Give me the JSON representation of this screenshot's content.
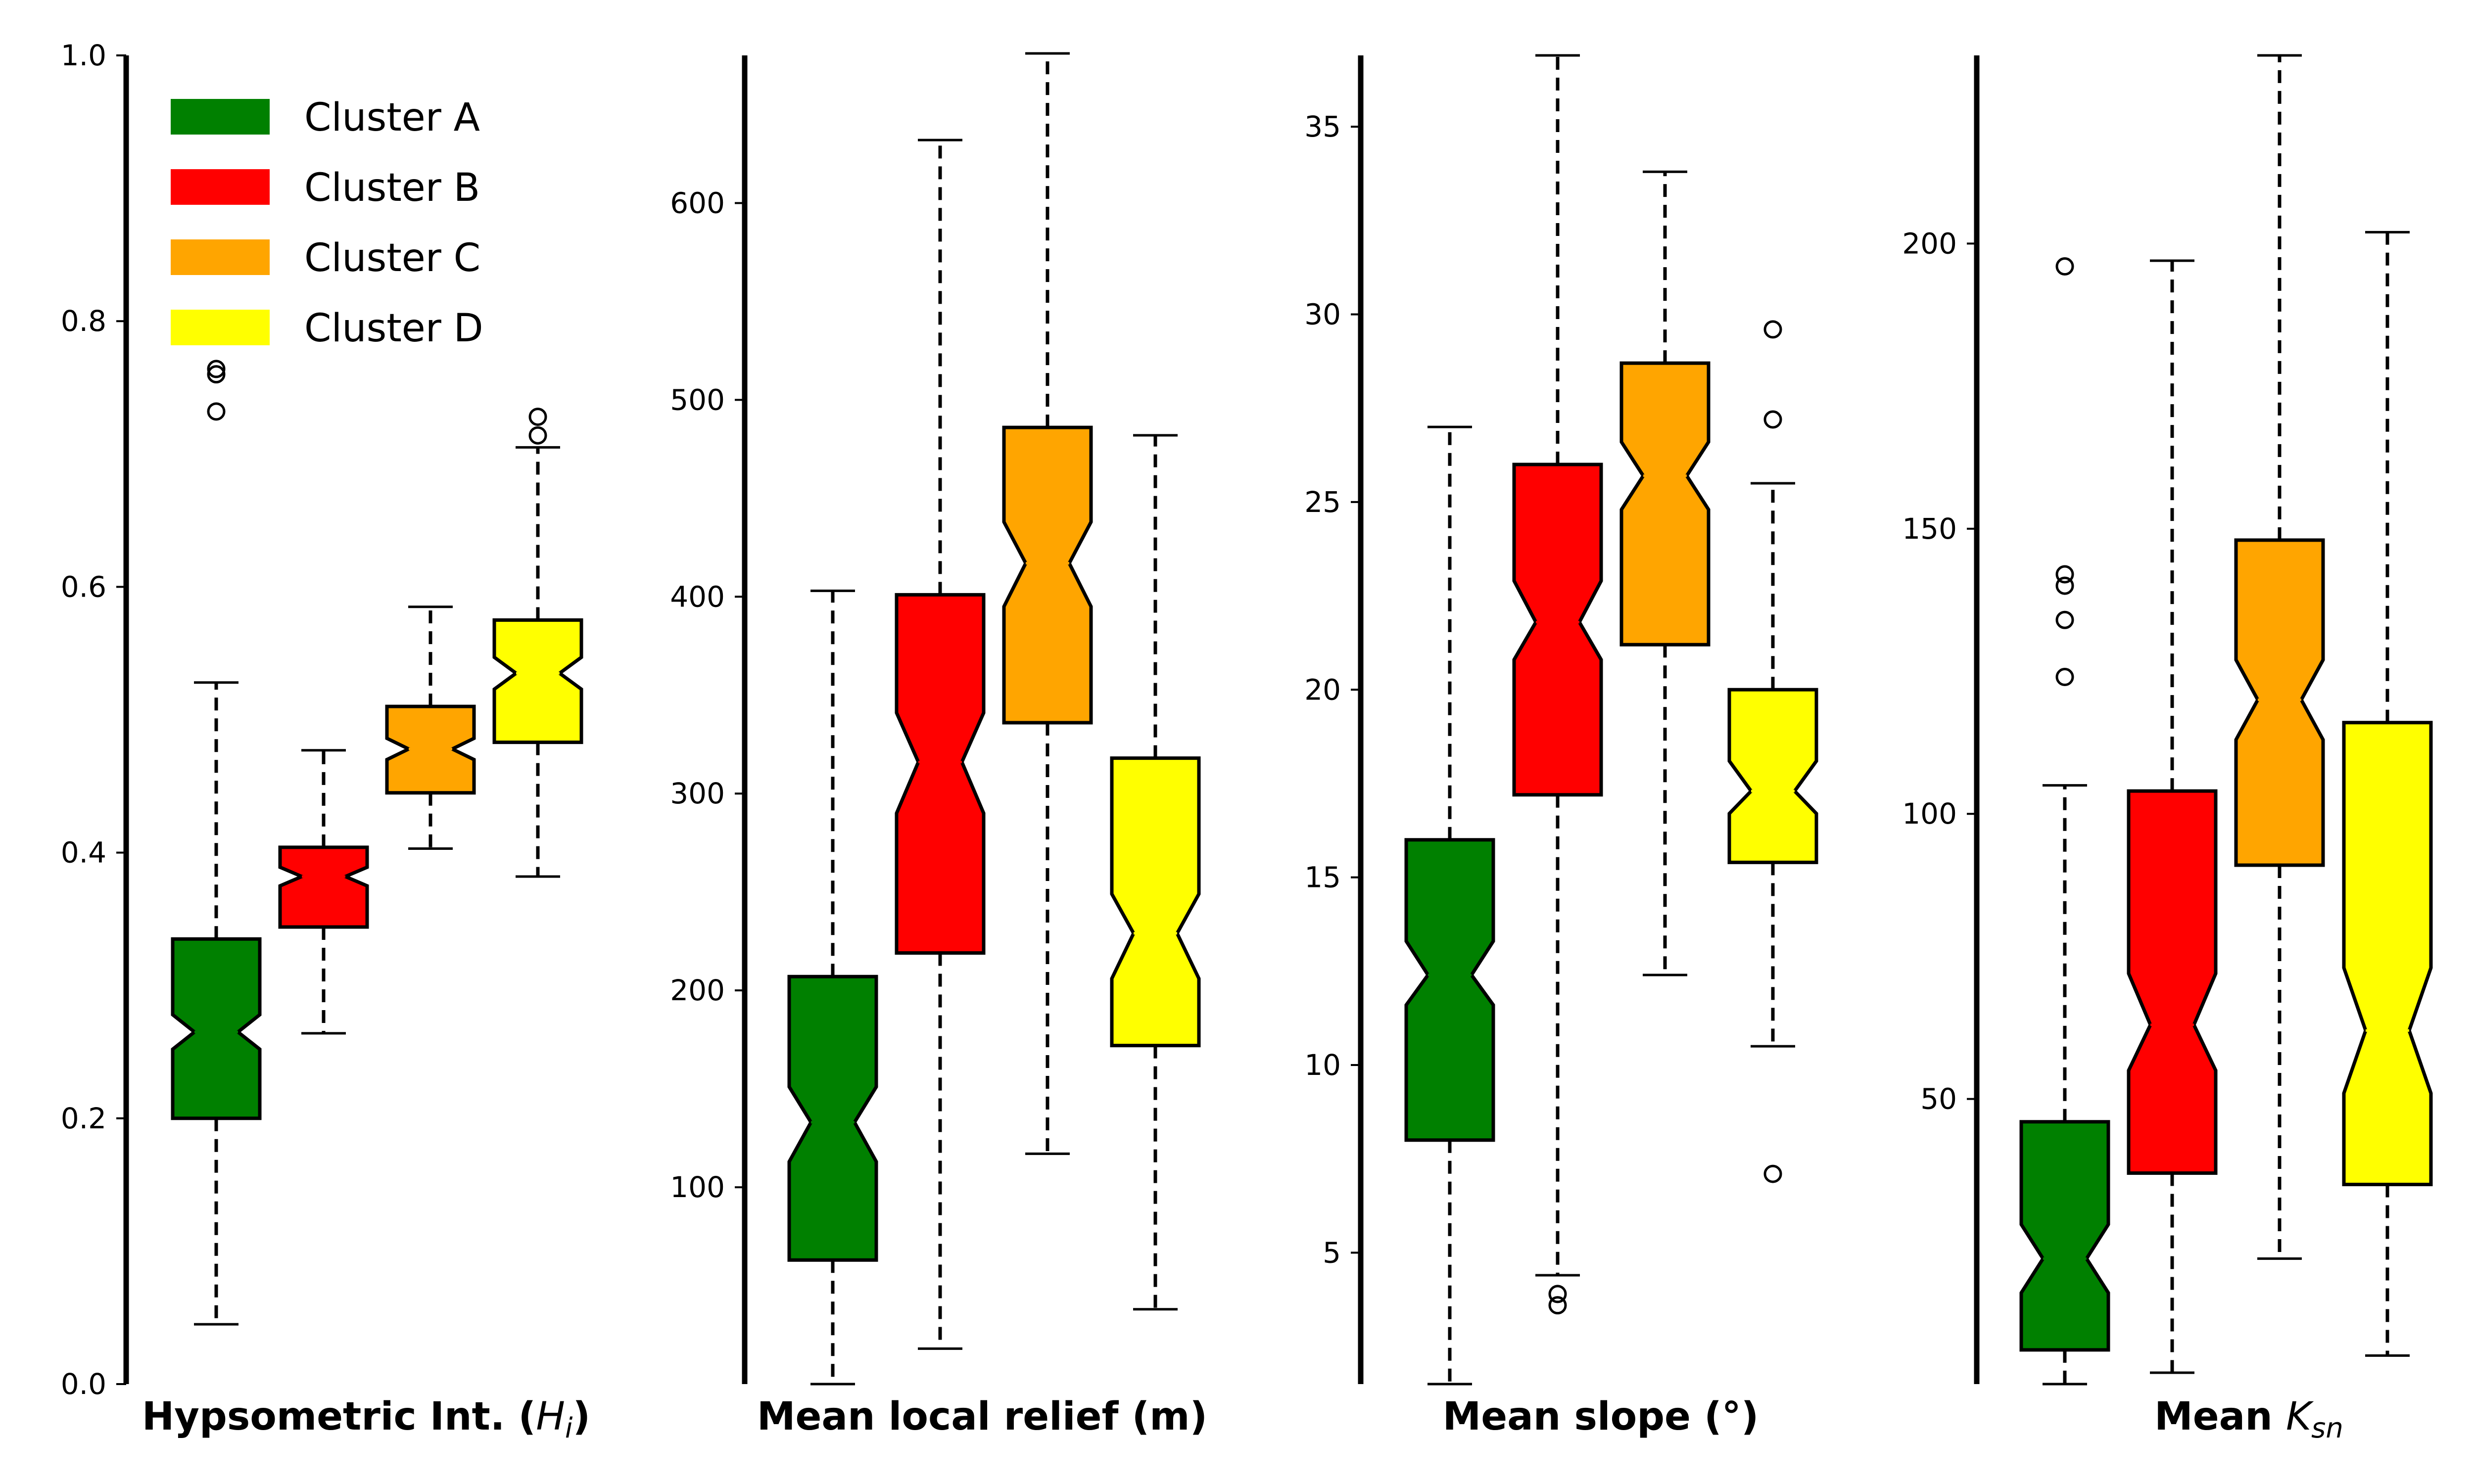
{
  "chart_data": [
    {
      "type": "boxplot",
      "xlabel": "Hypsometric Int. (H_i)",
      "xlabel_main": "Hypsometric Int. (",
      "xlabel_sym": "H",
      "xlabel_sub": "i",
      "xlabel_end": ")",
      "ylim": [
        0,
        1.0
      ],
      "yticks": [
        "0.0",
        "0.2",
        "0.4",
        "0.6",
        "0.8",
        "1.0"
      ],
      "ytick_values": [
        0,
        0.2,
        0.4,
        0.6,
        0.8,
        1.0
      ],
      "boxes": [
        {
          "name": "Cluster A",
          "whisker_low": 0.045,
          "q1": 0.2,
          "median": 0.265,
          "q3": 0.335,
          "whisker_high": 0.528,
          "notch_low": 0.252,
          "notch_high": 0.278,
          "outliers": [
            0.76,
            0.764,
            0.732
          ]
        },
        {
          "name": "Cluster B",
          "whisker_low": 0.264,
          "q1": 0.344,
          "median": 0.382,
          "q3": 0.404,
          "whisker_high": 0.477,
          "notch_low": 0.375,
          "notch_high": 0.389,
          "outliers": []
        },
        {
          "name": "Cluster C",
          "whisker_low": 0.403,
          "q1": 0.445,
          "median": 0.478,
          "q3": 0.51,
          "whisker_high": 0.585,
          "notch_low": 0.47,
          "notch_high": 0.486,
          "outliers": []
        },
        {
          "name": "Cluster D",
          "whisker_low": 0.382,
          "q1": 0.483,
          "median": 0.535,
          "q3": 0.575,
          "whisker_high": 0.705,
          "notch_low": 0.523,
          "notch_high": 0.547,
          "outliers": [
            0.728,
            0.714
          ]
        }
      ]
    },
    {
      "type": "boxplot",
      "xlabel": "Mean local relief (m)",
      "xlabel_main": "Mean local relief (m)",
      "xlabel_sym": "",
      "xlabel_sub": "",
      "xlabel_end": "",
      "ylim": [
        0,
        675
      ],
      "yticks": [
        "100",
        "200",
        "300",
        "400",
        "500",
        "600"
      ],
      "ytick_values": [
        100,
        200,
        300,
        400,
        500,
        600
      ],
      "boxes": [
        {
          "name": "Cluster A",
          "whisker_low": 0,
          "q1": 63,
          "median": 133,
          "q3": 207,
          "whisker_high": 403,
          "notch_low": 113,
          "notch_high": 151,
          "outliers": []
        },
        {
          "name": "Cluster B",
          "whisker_low": 18,
          "q1": 219,
          "median": 316,
          "q3": 401,
          "whisker_high": 632,
          "notch_low": 290,
          "notch_high": 341,
          "outliers": []
        },
        {
          "name": "Cluster C",
          "whisker_low": 117,
          "q1": 336,
          "median": 417,
          "q3": 486,
          "whisker_high": 676,
          "notch_low": 395,
          "notch_high": 438,
          "outliers": []
        },
        {
          "name": "Cluster D",
          "whisker_low": 38,
          "q1": 172,
          "median": 229,
          "q3": 318,
          "whisker_high": 482,
          "notch_low": 206,
          "notch_high": 249,
          "outliers": []
        }
      ]
    },
    {
      "type": "boxplot",
      "xlabel": "Mean slope (°)",
      "xlabel_main": "Mean slope (°)",
      "xlabel_sym": "",
      "xlabel_sub": "",
      "xlabel_end": "",
      "ylim": [
        1.5,
        36.9
      ],
      "yticks": [
        "5",
        "10",
        "15",
        "20",
        "25",
        "30",
        "35"
      ],
      "ytick_values": [
        5,
        10,
        15,
        20,
        25,
        30,
        35
      ],
      "boxes": [
        {
          "name": "Cluster A",
          "whisker_low": 1.5,
          "q1": 8.0,
          "median": 12.4,
          "q3": 16.0,
          "whisker_high": 27.0,
          "notch_low": 11.6,
          "notch_high": 13.3,
          "outliers": []
        },
        {
          "name": "Cluster B",
          "whisker_low": 4.4,
          "q1": 17.2,
          "median": 21.8,
          "q3": 26.0,
          "whisker_high": 36.9,
          "notch_low": 20.8,
          "notch_high": 22.9,
          "outliers": [
            3.9,
            3.6
          ]
        },
        {
          "name": "Cluster C",
          "whisker_low": 12.4,
          "q1": 21.2,
          "median": 25.7,
          "q3": 28.7,
          "whisker_high": 33.8,
          "notch_low": 24.8,
          "notch_high": 26.6,
          "outliers": []
        },
        {
          "name": "Cluster D",
          "whisker_low": 10.5,
          "q1": 15.4,
          "median": 17.3,
          "q3": 20.0,
          "whisker_high": 25.5,
          "notch_low": 16.7,
          "notch_high": 18.1,
          "outliers": [
            29.6,
            27.2,
            7.1
          ]
        }
      ]
    },
    {
      "type": "boxplot",
      "xlabel": "Mean K_sn",
      "xlabel_main": "Mean ",
      "xlabel_sym": "K",
      "xlabel_sub": "sn",
      "xlabel_end": "",
      "ylim": [
        0,
        233
      ],
      "yticks": [
        "50",
        "100",
        "150",
        "200"
      ],
      "ytick_values": [
        50,
        100,
        150,
        200
      ],
      "boxes": [
        {
          "name": "Cluster A",
          "whisker_low": 0,
          "q1": 6,
          "median": 22,
          "q3": 46,
          "whisker_high": 105,
          "notch_low": 16,
          "notch_high": 28,
          "outliers": [
            196,
            142,
            140,
            134,
            124
          ]
        },
        {
          "name": "Cluster B",
          "whisker_low": 2,
          "q1": 37,
          "median": 63,
          "q3": 104,
          "whisker_high": 197,
          "notch_low": 55,
          "notch_high": 72,
          "outliers": []
        },
        {
          "name": "Cluster C",
          "whisker_low": 22,
          "q1": 91,
          "median": 120,
          "q3": 148,
          "whisker_high": 233,
          "notch_low": 113,
          "notch_high": 127,
          "outliers": []
        },
        {
          "name": "Cluster D",
          "whisker_low": 5,
          "q1": 35,
          "median": 62,
          "q3": 116,
          "whisker_high": 202,
          "notch_low": 51,
          "notch_high": 73,
          "outliers": []
        }
      ]
    }
  ],
  "legend": {
    "placement": "top-left",
    "items": [
      {
        "label": "Cluster A",
        "color": "#008000"
      },
      {
        "label": "Cluster B",
        "color": "#ff0000"
      },
      {
        "label": "Cluster C",
        "color": "#ffa500"
      },
      {
        "label": "Cluster D",
        "color": "#ffff00"
      }
    ]
  }
}
